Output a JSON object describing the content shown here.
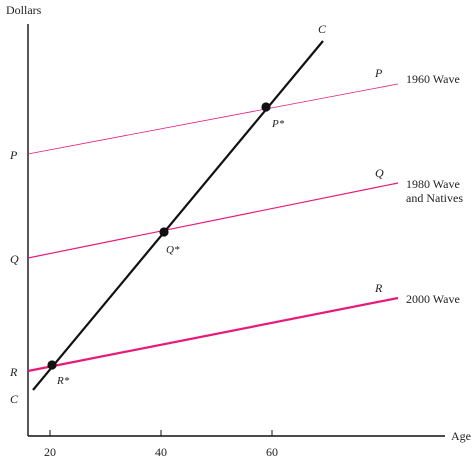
{
  "chart_data": {
    "type": "line",
    "title": "",
    "ylabel": "Dollars",
    "xlabel": "Age",
    "x_ticks": [
      20,
      40,
      60
    ],
    "y_axis_labels": [
      "P",
      "Q",
      "R",
      "C"
    ],
    "series": [
      {
        "name": "C",
        "color": "#111111",
        "description_label_end": "C",
        "points": [
          {
            "x": 17,
            "y": -0.6
          },
          {
            "x": 70,
            "y": 16.8
          }
        ]
      },
      {
        "name": "1960 Wave",
        "color": "#e8197a",
        "label_left": "P",
        "label_right": "P",
        "points": [
          {
            "x": 16,
            "y": 10
          },
          {
            "x": 79,
            "y": 13.0
          }
        ]
      },
      {
        "name": "1980 Wave and Natives",
        "color": "#e8197a",
        "label_left": "Q",
        "label_right": "Q",
        "points": [
          {
            "x": 16,
            "y": 5
          },
          {
            "x": 79,
            "y": 9.3
          }
        ]
      },
      {
        "name": "2000 Wave",
        "color": "#e8197a",
        "label_left": "R",
        "label_right": "R",
        "points": [
          {
            "x": 16,
            "y": 0
          },
          {
            "x": 79,
            "y": 4.5
          }
        ]
      }
    ],
    "intersections": [
      {
        "label": "P*",
        "x": 59,
        "y": 12.7
      },
      {
        "label": "Q*",
        "x": 40.5,
        "y": 6.5
      },
      {
        "label": "R*",
        "x": 20,
        "y": 0.3
      }
    ],
    "wave_labels": [
      "1960 Wave",
      "1980 Wave",
      "and Natives",
      "2000 Wave"
    ]
  }
}
